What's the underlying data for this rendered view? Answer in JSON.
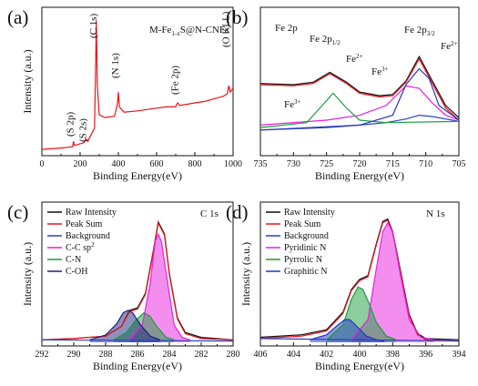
{
  "chart_data": [
    {
      "panel": "(a)",
      "type": "line",
      "title": "",
      "annotation_main": "M-Fe",
      "annotation_sub": "1-x",
      "annotation_rest": "S@N-CNFs",
      "xlabel": "Binding Energy(eV)",
      "ylabel": "Intensity (a.u.)",
      "xlim": [
        0,
        1000
      ],
      "ylim": [
        0,
        100
      ],
      "x_ticks": [
        "0",
        "200",
        "400",
        "600",
        "800",
        "1000"
      ],
      "grid": false,
      "peaks": [
        {
          "label": "(S 2p)",
          "x": 165
        },
        {
          "label": "(S 2s)",
          "x": 230
        },
        {
          "label": "(C 1s)",
          "x": 285
        },
        {
          "label": "(N 1s)",
          "x": 400
        },
        {
          "label": "(Fe 2p)",
          "x": 711
        },
        {
          "label": "(O KLL)",
          "x": 978
        }
      ],
      "series": [
        {
          "color": "#e8141b",
          "x": [
            0,
            100,
            160,
            165,
            170,
            220,
            230,
            240,
            275,
            280,
            285,
            290,
            300,
            330,
            380,
            395,
            400,
            405,
            430,
            500,
            550,
            600,
            650,
            700,
            705,
            711,
            720,
            760,
            800,
            850,
            900,
            950,
            970,
            978,
            985,
            1000
          ],
          "y": [
            2,
            3,
            4,
            8,
            5,
            7,
            10,
            8,
            18,
            55,
            99,
            50,
            28,
            26,
            27,
            36,
            45,
            34,
            30,
            31,
            32,
            33,
            34,
            34,
            36,
            37,
            35,
            36,
            37,
            38,
            40,
            42,
            44,
            50,
            45,
            48
          ]
        }
      ]
    },
    {
      "panel": "(b)",
      "type": "line",
      "title": "",
      "annotation": "Fe 2p",
      "xlabel": "Binding Energy(eV)",
      "ylabel": "",
      "xlim": [
        735,
        705
      ],
      "ylim": [
        0,
        100
      ],
      "x_ticks": [
        "735",
        "730",
        "725",
        "720",
        "715",
        "710",
        "705"
      ],
      "grid": false,
      "labels": [
        {
          "text": "Fe 2p",
          "sub": "1/2"
        },
        {
          "text": "Fe 2p",
          "sub": "3/2"
        },
        {
          "text": "Fe",
          "sup": "2+"
        },
        {
          "text": "Fe",
          "sup": "3+"
        },
        {
          "text": "Fe",
          "sup": "3+"
        },
        {
          "text": "Fe",
          "sup": "2+"
        }
      ],
      "series": [
        {
          "color": "#111111",
          "x": [
            735,
            730,
            727,
            724.5,
            722,
            720,
            717,
            715,
            713,
            711,
            709,
            707,
            705
          ],
          "y": [
            56,
            55,
            57,
            65,
            57,
            49,
            46,
            47,
            58,
            78,
            58,
            38,
            28
          ]
        },
        {
          "color": "#e8141b",
          "x": [
            735,
            730,
            727,
            724.5,
            722,
            720,
            717,
            715,
            713,
            711,
            709,
            707,
            705
          ],
          "y": [
            55,
            54,
            56,
            64,
            56,
            48,
            45,
            46,
            57,
            76,
            56,
            36,
            26
          ]
        },
        {
          "color": "#2b3fc7",
          "x": [
            735,
            725,
            720,
            716,
            713,
            711,
            709,
            707,
            705
          ],
          "y": [
            18,
            20,
            22,
            24,
            27,
            30,
            29,
            27,
            25
          ]
        },
        {
          "color": "#e81de0",
          "x": [
            735,
            725,
            720,
            716,
            713,
            711,
            709,
            707,
            705
          ],
          "y": [
            22,
            26,
            30,
            38,
            54,
            52,
            40,
            30,
            26
          ]
        },
        {
          "color": "#1a9e3b",
          "x": [
            735,
            728,
            726,
            724,
            722,
            720,
            716,
            705
          ],
          "y": [
            20,
            24,
            36,
            48,
            36,
            26,
            24,
            25
          ]
        },
        {
          "color": "#2436c4",
          "x": [
            735,
            720,
            715,
            713,
            711,
            709.5,
            708,
            705
          ],
          "y": [
            18,
            22,
            30,
            55,
            68,
            60,
            38,
            26
          ]
        }
      ]
    },
    {
      "panel": "(c)",
      "type": "line",
      "title": "",
      "annotation": "C 1s",
      "xlabel": "Binding Energy(eV)",
      "ylabel": "Intensity (a.u.)",
      "xlim": [
        292,
        280
      ],
      "ylim": [
        0,
        100
      ],
      "x_ticks": [
        "292",
        "290",
        "288",
        "286",
        "284",
        "282",
        "280"
      ],
      "grid": false,
      "legend": [
        "Raw Intensity",
        "Peak Sum",
        "Background",
        "C-C sp",
        "C-N",
        "C-OH"
      ],
      "legend_superscripts": [
        "",
        "",
        "",
        "2",
        "",
        ""
      ],
      "legend_colors": [
        "#111111",
        "#e8141b",
        "#2b3fc7",
        "#e81de0",
        "#1a9e3b",
        "#1a237e"
      ],
      "series": [
        {
          "name": "Raw Intensity",
          "color": "#111111",
          "x": [
            292,
            290,
            288,
            287,
            286.5,
            286,
            285.5,
            285,
            284.7,
            284.3,
            284,
            283.5,
            283,
            282,
            280
          ],
          "y": [
            2,
            3,
            5,
            13,
            26,
            28,
            40,
            75,
            98,
            88,
            56,
            20,
            8,
            4,
            2
          ]
        },
        {
          "name": "Peak Sum",
          "color": "#e8141b",
          "x": [
            292,
            290,
            288,
            287,
            286.5,
            286,
            285.5,
            285,
            284.7,
            284.3,
            284,
            283.5,
            283,
            282,
            280
          ],
          "y": [
            2,
            3,
            5,
            13,
            25,
            27,
            39,
            74,
            97,
            87,
            55,
            19,
            7,
            3,
            2
          ]
        },
        {
          "name": "Background",
          "color": "#2b3fc7",
          "x": [
            292,
            280
          ],
          "y": [
            2,
            1
          ]
        },
        {
          "name": "C-C sp2",
          "color": "#e81de0",
          "x": [
            286.5,
            285.7,
            285.2,
            284.9,
            284.7,
            284.5,
            284.1,
            283.7,
            283.2,
            282.7
          ],
          "y": [
            2,
            14,
            48,
            82,
            88,
            82,
            48,
            14,
            4,
            2
          ]
        },
        {
          "name": "C-N",
          "color": "#1a9e3b",
          "x": [
            287.5,
            286.7,
            286.1,
            285.6,
            285.2,
            284.8,
            284.2,
            283.7
          ],
          "y": [
            2,
            8,
            18,
            24,
            21,
            13,
            4,
            2
          ]
        },
        {
          "name": "C-OH",
          "color": "#1a237e",
          "x": [
            289,
            288,
            287.3,
            286.9,
            286.6,
            286.3,
            285.8,
            285.2,
            284.6
          ],
          "y": [
            2,
            6,
            15,
            24,
            26,
            24,
            14,
            5,
            2
          ]
        }
      ]
    },
    {
      "panel": "(d)",
      "type": "line",
      "title": "",
      "annotation": "N 1s",
      "xlabel": "Binding Energy(eV)",
      "ylabel": "Intensity (a.u.)",
      "xlim": [
        406,
        394
      ],
      "ylim": [
        0,
        100
      ],
      "x_ticks": [
        "406",
        "404",
        "402",
        "400",
        "398",
        "396",
        "394"
      ],
      "grid": false,
      "legend": [
        "Raw Intensity",
        "Peak Sum",
        "Background",
        "Pyridinic N",
        "Pyrrolic N",
        "Graphitic N"
      ],
      "legend_colors": [
        "#111111",
        "#e8141b",
        "#2b3fc7",
        "#e81de0",
        "#1a9e3b",
        "#2436c4"
      ],
      "series": [
        {
          "name": "Raw Intensity",
          "color": "#111111",
          "x": [
            406,
            403.5,
            402,
            401,
            400.5,
            400,
            399.5,
            399,
            398.6,
            398.3,
            398,
            397.5,
            397,
            396.5,
            396,
            394
          ],
          "y": [
            4,
            6,
            10,
            24,
            42,
            50,
            53,
            78,
            96,
            98,
            88,
            55,
            22,
            7,
            3,
            2
          ]
        },
        {
          "name": "Peak Sum",
          "color": "#e8141b",
          "x": [
            406,
            403.5,
            402,
            401,
            400.5,
            400,
            399.5,
            399,
            398.6,
            398.3,
            398,
            397.5,
            397,
            396.5,
            396,
            394
          ],
          "y": [
            3,
            5,
            9,
            23,
            41,
            49,
            52,
            77,
            95,
            97,
            87,
            54,
            21,
            6,
            2,
            1
          ]
        },
        {
          "name": "Background",
          "color": "#2b3fc7",
          "x": [
            406,
            394
          ],
          "y": [
            3,
            1
          ]
        },
        {
          "name": "Pyridinic N",
          "color": "#e81de0",
          "x": [
            400.5,
            399.5,
            399,
            398.6,
            398.3,
            398,
            397.6,
            397,
            396.3,
            395.5
          ],
          "y": [
            2,
            18,
            58,
            88,
            95,
            88,
            58,
            18,
            4,
            2
          ]
        },
        {
          "name": "Pyrrolic N",
          "color": "#1a9e3b",
          "x": [
            402,
            401,
            400.5,
            400.1,
            399.8,
            399.4,
            399,
            398.4,
            397.8
          ],
          "y": [
            2,
            14,
            34,
            44,
            42,
            30,
            16,
            5,
            2
          ]
        },
        {
          "name": "Graphitic N",
          "color": "#2436c4",
          "x": [
            403,
            402,
            401.3,
            400.9,
            400.6,
            400.2,
            399.6,
            399,
            398.5
          ],
          "y": [
            2,
            6,
            14,
            18,
            18,
            13,
            5,
            2,
            1
          ]
        }
      ]
    }
  ]
}
